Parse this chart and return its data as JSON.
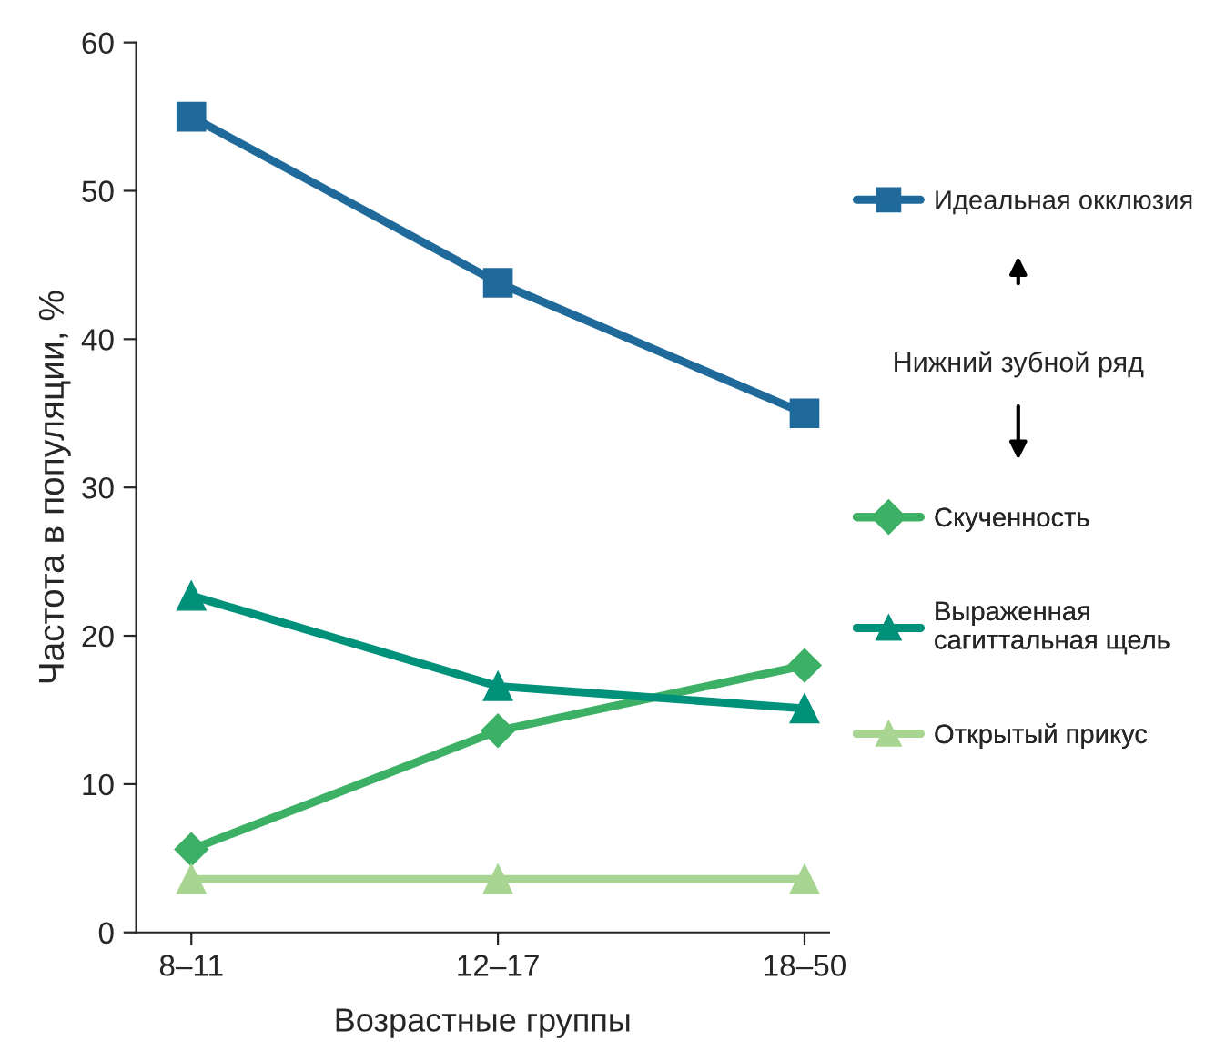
{
  "chart_data": {
    "type": "line",
    "xlabel": "Возрастные группы",
    "ylabel": "Частота в популяции, %",
    "categories": [
      "8–11",
      "12–17",
      "18–50"
    ],
    "series": [
      {
        "name": "Идеальная окклюзия",
        "color": "#1f6a9a",
        "marker": "square",
        "values": [
          55,
          43.8,
          35
        ]
      },
      {
        "name": "Скученность",
        "color": "#3cb064",
        "marker": "diamond",
        "values": [
          5.6,
          13.6,
          18
        ]
      },
      {
        "name": "Выраженная\nсагиттальная щель",
        "color": "#00917a",
        "marker": "triangle",
        "values": [
          22.7,
          16.6,
          15.1
        ]
      },
      {
        "name": "Открытый прикус",
        "color": "#a8d592",
        "marker": "triangle",
        "values": [
          3.6,
          3.6,
          3.6
        ]
      }
    ],
    "annotations": [
      "Нижний зубной ряд"
    ],
    "ylim": [
      0,
      60
    ],
    "yticks": [
      0,
      10,
      20,
      30,
      40,
      50,
      60
    ],
    "grid": false,
    "legend": "right",
    "line_style": "solid"
  }
}
